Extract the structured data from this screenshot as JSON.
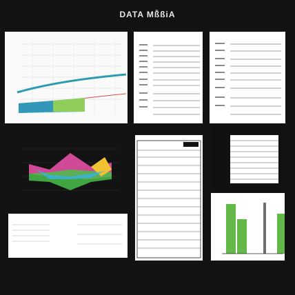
{
  "header": {
    "title": "DATA Mß̄ßiA",
    "subtitle": ""
  },
  "panels": {
    "p1": {
      "title": "",
      "left_label": ""
    },
    "p2": {
      "title": ""
    },
    "p3": {
      "title": ""
    },
    "p4": {
      "title": ""
    },
    "p5": {
      "title": ""
    },
    "p6": {
      "title": ""
    },
    "p7": {
      "title": ""
    },
    "p8": {
      "title": ""
    }
  },
  "footer": {
    "line1": "",
    "line2": ""
  }
}
